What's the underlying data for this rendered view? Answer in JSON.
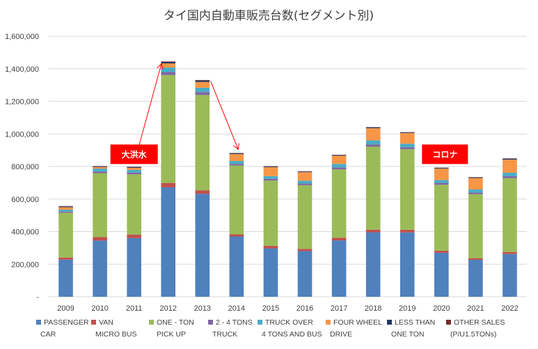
{
  "chart_data": {
    "type": "bar",
    "stacked": true,
    "title": "タイ国内自動車販売台数(セグメント別)",
    "categories": [
      "2009",
      "2010",
      "2011",
      "2012",
      "2013",
      "2014",
      "2015",
      "2016",
      "2017",
      "2018",
      "2019",
      "2020",
      "2021",
      "2022"
    ],
    "ylim": [
      0,
      1600000
    ],
    "yticks": [
      "-",
      "200,000",
      "400,000",
      "600,000",
      "800,000",
      "1,000,000",
      "1,200,000",
      "1,400,000",
      "1,600,000"
    ],
    "ytick_values": [
      0,
      200000,
      400000,
      600000,
      800000,
      1000000,
      1200000,
      1400000,
      1600000
    ],
    "grid": true,
    "legend_position": "bottom",
    "series": [
      {
        "name": "PASSENGER CAR",
        "legend_lines": [
          "PASSENGER",
          "CAR"
        ],
        "color": "#4F81BD",
        "values": [
          228000,
          345000,
          360000,
          672000,
          632000,
          370000,
          297000,
          280000,
          346000,
          396000,
          395000,
          270000,
          227000,
          262000
        ]
      },
      {
        "name": "VAN MICRO BUS",
        "legend_lines": [
          "VAN",
          "MICRO BUS"
        ],
        "color": "#C0504D",
        "values": [
          13000,
          22000,
          22000,
          27000,
          22000,
          13000,
          16000,
          14000,
          16000,
          16000,
          16000,
          13000,
          10000,
          13000
        ]
      },
      {
        "name": "ONE - TON PICK UP",
        "legend_lines": [
          "ONE - TON",
          "PICK   UP"
        ],
        "color": "#9BBB59",
        "values": [
          275000,
          392000,
          370000,
          663000,
          585000,
          423000,
          401000,
          391000,
          420000,
          510000,
          495000,
          405000,
          393000,
          453000
        ]
      },
      {
        "name": "2 - 4 TONS TRUCK",
        "legend_lines": [
          "2 - 4 TONS",
          "TRUCK"
        ],
        "color": "#8064A2",
        "values": [
          7000,
          10000,
          10000,
          18000,
          18000,
          10000,
          10000,
          10000,
          12000,
          13000,
          12000,
          11000,
          10000,
          12000
        ]
      },
      {
        "name": "TRUCK OVER 4 TONS AND BUS",
        "legend_lines": [
          "TRUCK OVER",
          "4 TONS AND BUS"
        ],
        "color": "#4BACC6",
        "values": [
          12000,
          18000,
          17000,
          28000,
          27000,
          18000,
          17000,
          18000,
          22000,
          25000,
          22000,
          18000,
          19000,
          22000
        ]
      },
      {
        "name": "FOUR WHEEL DRIVE",
        "legend_lines": [
          "FOUR WHEEL",
          "DRIVE"
        ],
        "color": "#F79646",
        "values": [
          15000,
          10000,
          13000,
          25000,
          35000,
          42000,
          55000,
          52000,
          50000,
          75000,
          65000,
          70000,
          70000,
          80000
        ]
      },
      {
        "name": "LESS THAN ONE TON",
        "legend_lines": [
          "LESS THAN",
          "ONE TON"
        ],
        "color": "#1F3864",
        "values": [
          5000,
          4000,
          5000,
          9000,
          9000,
          5000,
          4000,
          4000,
          4000,
          5000,
          4000,
          4000,
          4000,
          6000
        ]
      },
      {
        "name": "OTHER SALES (P/U1.5TONs)",
        "legend_lines": [
          "OTHER SALES",
          "(P/U1.5TONs)"
        ],
        "color": "#772C2A",
        "values": [
          2000,
          2000,
          2000,
          3000,
          3000,
          2000,
          2000,
          2000,
          2000,
          2000,
          2000,
          2000,
          2000,
          2000
        ]
      }
    ],
    "annotations": [
      {
        "text": "大洪水",
        "box_color": "#FF0000",
        "text_color": "#FFFFFF"
      },
      {
        "text": "コロナ",
        "box_color": "#FF0000",
        "text_color": "#FFFFFF"
      }
    ],
    "arrow_color": "#FF0000"
  }
}
